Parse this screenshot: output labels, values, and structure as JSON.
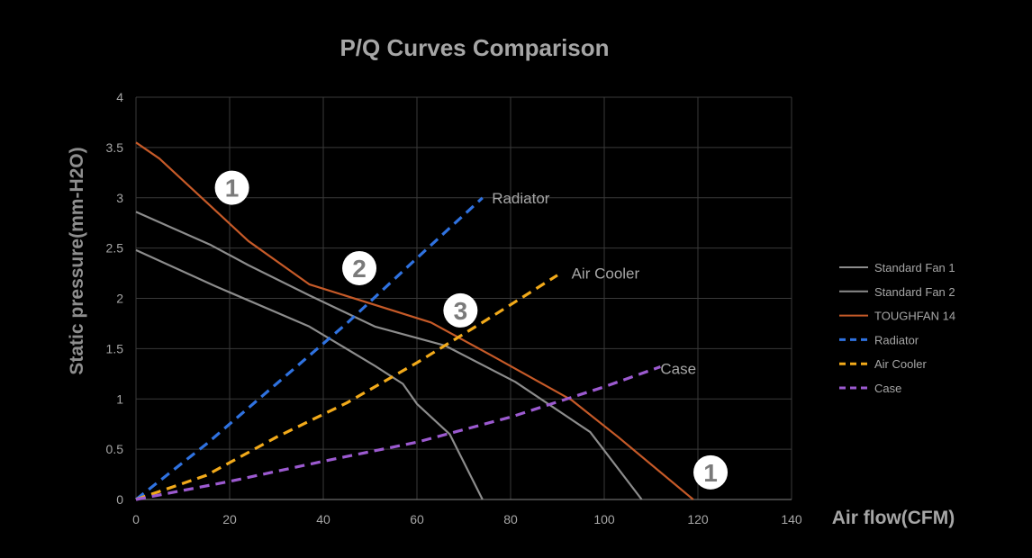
{
  "chart_data": {
    "type": "line",
    "title": "P/Q Curves Comparison",
    "xlabel": "Air flow(CFM)",
    "ylabel": "Static pressure(mm-H2O)",
    "xlim": [
      0,
      140
    ],
    "ylim": [
      0,
      4
    ],
    "x_ticks": [
      0,
      20,
      40,
      60,
      80,
      100,
      120,
      140
    ],
    "y_ticks": [
      0,
      0.5,
      1,
      1.5,
      2,
      2.5,
      3,
      3.5,
      4
    ],
    "x_tick_labels": [
      "0",
      "20",
      "40",
      "60",
      "80",
      "100",
      "120",
      "140"
    ],
    "y_tick_labels": [
      "0",
      "0.5",
      "1",
      "1.5",
      "2",
      "2.5",
      "3",
      "3.5",
      "4"
    ],
    "grid": true,
    "legend_position": "right",
    "series": [
      {
        "name": "Standard Fan 1",
        "color": "#8c8c8c",
        "dash": "solid",
        "x": [
          0,
          17,
          37,
          51,
          57,
          60,
          67,
          74
        ],
        "y": [
          2.48,
          2.12,
          1.72,
          1.33,
          1.15,
          0.95,
          0.65,
          0
        ]
      },
      {
        "name": "Standard Fan 2",
        "color": "#8c8c8c",
        "dash": "solid",
        "x": [
          0,
          16,
          24,
          37,
          51,
          66,
          81,
          97,
          108
        ],
        "y": [
          2.86,
          2.53,
          2.33,
          2.03,
          1.72,
          1.53,
          1.17,
          0.67,
          0
        ]
      },
      {
        "name": "TOUGHFAN 14",
        "color": "#c65a28",
        "dash": "solid",
        "x": [
          0,
          5,
          24,
          37,
          63,
          76,
          93,
          103,
          119
        ],
        "y": [
          3.55,
          3.39,
          2.57,
          2.14,
          1.76,
          1.43,
          0.99,
          0.62,
          0
        ]
      },
      {
        "name": "Radiator",
        "color": "#2f72e0",
        "dash": "dashed",
        "x": [
          0,
          15,
          30,
          45,
          60,
          74
        ],
        "y": [
          0,
          0.55,
          1.15,
          1.75,
          2.4,
          3.0
        ]
      },
      {
        "name": "Air Cooler",
        "color": "#f2aa1a",
        "dash": "dashed",
        "x": [
          0,
          15,
          30,
          45,
          60,
          75,
          90
        ],
        "y": [
          0,
          0.24,
          0.62,
          0.96,
          1.36,
          1.79,
          2.23
        ]
      },
      {
        "name": "Case",
        "color": "#9c5ad0",
        "dash": "dashed",
        "x": [
          0,
          20,
          40,
          60,
          80,
          100,
          112
        ],
        "y": [
          0,
          0.18,
          0.38,
          0.57,
          0.82,
          1.12,
          1.32
        ]
      }
    ],
    "annotations": [
      {
        "text": "Radiator",
        "x": 76,
        "y": 3.0,
        "kind": "label"
      },
      {
        "text": "Air Cooler",
        "x": 93,
        "y": 2.25,
        "kind": "label"
      },
      {
        "text": "Case",
        "x": 112,
        "y": 1.3,
        "kind": "label"
      },
      {
        "text": "1",
        "x": 20.5,
        "y": 3.1,
        "kind": "marker"
      },
      {
        "text": "2",
        "x": 47.7,
        "y": 2.3,
        "kind": "marker"
      },
      {
        "text": "3",
        "x": 69.3,
        "y": 1.88,
        "kind": "marker"
      },
      {
        "text": "1",
        "x": 122.7,
        "y": 0.27,
        "kind": "marker"
      }
    ]
  }
}
